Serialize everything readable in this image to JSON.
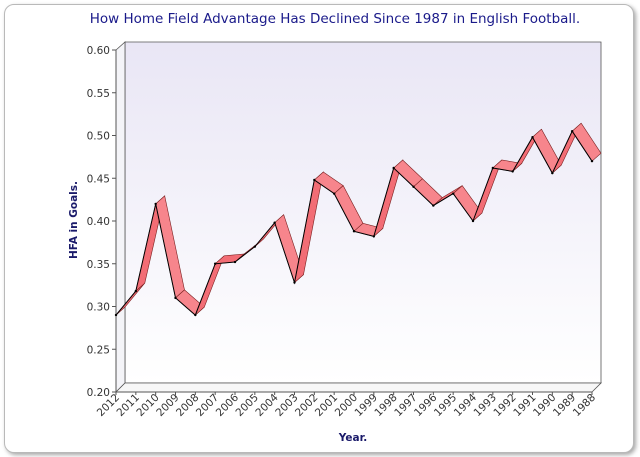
{
  "chart_data": {
    "type": "line",
    "title": "How Home Field Advantage Has Declined Since 1987 in English Football.",
    "xlabel": "Year.",
    "ylabel": "HFA in Goals.",
    "ylim": [
      0.2,
      0.6
    ],
    "yticks": [
      "0.20",
      "0.25",
      "0.30",
      "0.35",
      "0.40",
      "0.45",
      "0.50",
      "0.55",
      "0.60"
    ],
    "grid": false,
    "legend": "none",
    "categories": [
      "2012",
      "2011",
      "2010",
      "2009",
      "2008",
      "2007",
      "2006",
      "2005",
      "2004",
      "2003",
      "2002",
      "2001",
      "2000",
      "1999",
      "1998",
      "1997",
      "1996",
      "1995",
      "1994",
      "1993",
      "1992",
      "1991",
      "1990",
      "1989",
      "1988"
    ],
    "series": [
      {
        "name": "HFA",
        "values": [
          0.29,
          0.318,
          0.42,
          0.31,
          0.29,
          0.35,
          0.352,
          0.37,
          0.398,
          0.328,
          0.448,
          0.432,
          0.388,
          0.382,
          0.462,
          0.44,
          0.418,
          0.432,
          0.4,
          0.462,
          0.458,
          0.498,
          0.456,
          0.505,
          0.47
        ]
      }
    ],
    "colors": {
      "ribbon": "#f26d75",
      "ribbon_edge": "#7a2020",
      "line": "#000000",
      "title": "#1a1a8a",
      "axis_label": "#1a1a6a"
    }
  }
}
